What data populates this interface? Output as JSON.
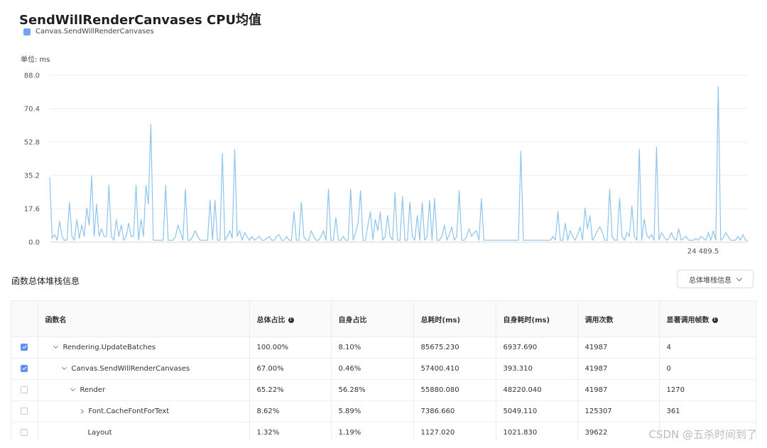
{
  "title": "SendWillRenderCanvases CPU均值",
  "unit_label": "单位: ms",
  "section_title": "函数总体堆栈信息",
  "dropdown": {
    "selected": "总体堆栈信息"
  },
  "watermark": "CSDN @五杀时间到了",
  "table": {
    "headers": [
      "函数名",
      "总体占比",
      "自身占比",
      "总耗时(ms)",
      "自身耗时(ms)",
      "调用次数",
      "显著调用帧数"
    ],
    "rows": [
      {
        "checked": true,
        "name": "Rendering.UpdateBatches",
        "expand": "down",
        "total_pct": "100.00%",
        "self_pct": "8.10%",
        "total_ms": "85675.230",
        "self_ms": "6937.690",
        "calls": "41987",
        "frames": "4"
      },
      {
        "checked": true,
        "name": "Canvas.SendWillRenderCanvases",
        "expand": "down",
        "total_pct": "67.00%",
        "self_pct": "0.46%",
        "total_ms": "57400.410",
        "self_ms": "393.310",
        "calls": "41987",
        "frames": "0"
      },
      {
        "checked": false,
        "name": "Render",
        "expand": "down",
        "total_pct": "65.22%",
        "self_pct": "56.28%",
        "total_ms": "55880.080",
        "self_ms": "48220.040",
        "calls": "41987",
        "frames": "1270"
      },
      {
        "checked": false,
        "name": "Font.CacheFontForText",
        "expand": "right",
        "total_pct": "8.62%",
        "self_pct": "5.89%",
        "total_ms": "7386.660",
        "self_ms": "5049.110",
        "calls": "125307",
        "frames": "361"
      },
      {
        "checked": false,
        "name": "Layout",
        "expand": "none",
        "total_pct": "1.32%",
        "self_pct": "1.19%",
        "total_ms": "1127.020",
        "self_ms": "1021.830",
        "calls": "39622",
        "frames": ""
      }
    ]
  },
  "chart_data": {
    "type": "line",
    "title": "SendWillRenderCanvases CPU均值",
    "ylabel": "单位: ms",
    "ylim": [
      0,
      88
    ],
    "y_ticks": [
      "88.0",
      "70.4",
      "52.8",
      "35.2",
      "17.6",
      "0.0"
    ],
    "x_tick_labels": [
      "24 489.5"
    ],
    "grid": true,
    "legend_position": "top-left",
    "series": [
      {
        "name": "Canvas.SendWillRenderCanvases",
        "color": "#8ec4ec",
        "values": [
          34,
          2,
          4,
          1,
          11,
          3,
          1,
          1,
          21,
          3,
          1,
          12,
          2,
          9,
          3,
          18,
          9,
          35,
          3,
          20,
          3,
          7,
          3,
          3,
          30,
          3,
          1,
          12,
          3,
          9,
          1,
          3,
          10,
          3,
          3,
          30,
          1,
          12,
          3,
          30,
          20,
          62,
          1,
          1,
          1,
          1,
          1,
          30,
          1,
          1,
          1,
          3,
          9,
          5,
          1,
          28,
          1,
          1,
          3,
          6,
          3,
          1,
          1,
          1,
          1,
          22,
          1,
          22,
          1,
          1,
          47,
          1,
          3,
          6,
          2,
          49,
          3,
          6,
          1,
          5,
          3,
          1,
          3,
          1,
          2,
          3,
          1,
          1,
          2,
          3,
          1,
          1,
          3,
          4,
          1,
          1,
          3,
          1,
          1,
          16,
          1,
          1,
          21,
          3,
          1,
          1,
          6,
          3,
          1,
          1,
          3,
          6,
          1,
          28,
          1,
          1,
          13,
          1,
          1,
          3,
          1,
          1,
          28,
          1,
          5,
          10,
          27,
          1,
          1,
          9,
          16,
          1,
          12,
          6,
          16,
          1,
          3,
          14,
          3,
          1,
          26,
          1,
          1,
          24,
          1,
          1,
          21,
          3,
          1,
          14,
          1,
          21,
          1,
          3,
          22,
          1,
          23,
          1,
          1,
          3,
          9,
          1,
          4,
          8,
          1,
          3,
          27,
          1,
          1,
          3,
          7,
          3,
          5,
          6,
          1,
          23,
          1,
          1,
          1,
          1,
          1,
          1,
          1,
          1,
          1,
          1,
          1,
          1,
          1,
          1,
          1,
          48,
          1,
          1,
          1,
          1,
          1,
          1,
          1,
          1,
          1,
          1,
          1,
          1,
          3,
          1,
          16,
          1,
          1,
          10,
          1,
          6,
          3,
          1,
          4,
          8,
          1,
          18,
          7,
          14,
          1,
          3,
          6,
          8,
          5,
          1,
          1,
          28,
          3,
          1,
          1,
          23,
          3,
          1,
          5,
          3,
          19,
          3,
          1,
          49,
          1,
          12,
          4,
          2,
          4,
          1,
          50,
          1,
          5,
          3,
          1,
          2,
          5,
          2,
          1,
          7,
          1,
          2,
          3,
          1,
          1,
          1,
          2,
          1,
          3,
          2,
          1,
          5,
          1,
          6,
          1,
          82,
          1,
          2,
          5,
          3,
          1,
          1,
          1,
          3,
          1,
          4,
          1,
          1
        ]
      }
    ]
  }
}
